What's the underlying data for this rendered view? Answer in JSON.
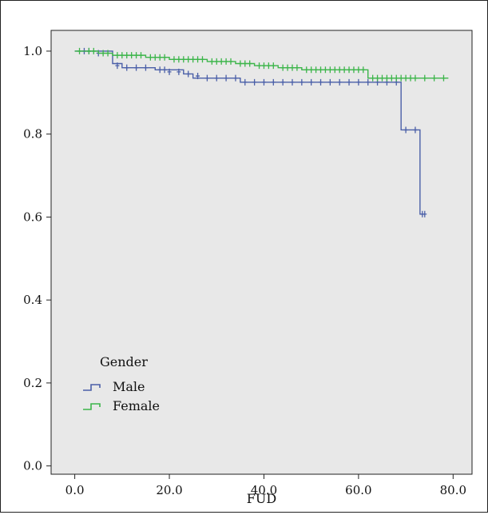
{
  "chart_data": {
    "type": "line",
    "subtype": "kaplan-meier-survival",
    "title": "",
    "xlabel": "FUD",
    "ylabel": "",
    "xlim": [
      -5,
      84
    ],
    "ylim": [
      -0.02,
      1.05
    ],
    "x_ticks": [
      "0.0",
      "20.0",
      "40.0",
      "60.0",
      "80.0"
    ],
    "x_tick_values": [
      0,
      20,
      40,
      60,
      80
    ],
    "y_ticks": [
      "0.0",
      "0.2",
      "0.4",
      "0.6",
      "0.8",
      "1.0"
    ],
    "y_tick_values": [
      0,
      0.2,
      0.4,
      0.6,
      0.8,
      1.0
    ],
    "grid": false,
    "legend": {
      "title": "Gender",
      "position": "bottom-left",
      "entries": [
        {
          "label": "Male",
          "color": "#4a5fa8"
        },
        {
          "label": "Female",
          "color": "#3cb54a"
        }
      ]
    },
    "colors": {
      "plot_background": "#e8e8e8",
      "Male": "#4a5fa8",
      "Female": "#3cb54a"
    },
    "series": [
      {
        "name": "Male",
        "color": "#4a5fa8",
        "steps": [
          [
            0,
            1.0
          ],
          [
            8,
            0.97
          ],
          [
            10,
            0.96
          ],
          [
            17,
            0.955
          ],
          [
            23,
            0.945
          ],
          [
            25,
            0.935
          ],
          [
            35,
            0.925
          ],
          [
            69,
            0.81
          ],
          [
            73,
            0.607
          ],
          [
            74,
            0.607
          ]
        ],
        "censored": [
          [
            2,
            1.0
          ],
          [
            3,
            1.0
          ],
          [
            5,
            0.995
          ],
          [
            9,
            0.965
          ],
          [
            11,
            0.96
          ],
          [
            13,
            0.96
          ],
          [
            15,
            0.96
          ],
          [
            18,
            0.955
          ],
          [
            19,
            0.955
          ],
          [
            20,
            0.95
          ],
          [
            22,
            0.95
          ],
          [
            24,
            0.945
          ],
          [
            26,
            0.94
          ],
          [
            28,
            0.935
          ],
          [
            30,
            0.935
          ],
          [
            32,
            0.935
          ],
          [
            34,
            0.935
          ],
          [
            36,
            0.925
          ],
          [
            38,
            0.925
          ],
          [
            40,
            0.925
          ],
          [
            42,
            0.925
          ],
          [
            44,
            0.925
          ],
          [
            46,
            0.925
          ],
          [
            48,
            0.925
          ],
          [
            50,
            0.925
          ],
          [
            52,
            0.925
          ],
          [
            54,
            0.925
          ],
          [
            56,
            0.925
          ],
          [
            58,
            0.925
          ],
          [
            60,
            0.925
          ],
          [
            62,
            0.925
          ],
          [
            64,
            0.925
          ],
          [
            66,
            0.925
          ],
          [
            68,
            0.925
          ],
          [
            70,
            0.81
          ],
          [
            72,
            0.81
          ],
          [
            73.5,
            0.607
          ],
          [
            74,
            0.607
          ]
        ]
      },
      {
        "name": "Female",
        "color": "#3cb54a",
        "steps": [
          [
            0,
            1.0
          ],
          [
            5,
            0.995
          ],
          [
            8,
            0.99
          ],
          [
            15,
            0.985
          ],
          [
            20,
            0.98
          ],
          [
            28,
            0.975
          ],
          [
            34,
            0.97
          ],
          [
            38,
            0.965
          ],
          [
            43,
            0.96
          ],
          [
            48,
            0.955
          ],
          [
            62,
            0.935
          ],
          [
            79,
            0.935
          ]
        ],
        "censored": [
          [
            1,
            1.0
          ],
          [
            3,
            1.0
          ],
          [
            4,
            1.0
          ],
          [
            6,
            0.995
          ],
          [
            7,
            0.995
          ],
          [
            9,
            0.99
          ],
          [
            10,
            0.99
          ],
          [
            11,
            0.99
          ],
          [
            12,
            0.99
          ],
          [
            13,
            0.99
          ],
          [
            14,
            0.99
          ],
          [
            16,
            0.985
          ],
          [
            17,
            0.985
          ],
          [
            18,
            0.985
          ],
          [
            19,
            0.985
          ],
          [
            21,
            0.98
          ],
          [
            22,
            0.98
          ],
          [
            23,
            0.98
          ],
          [
            24,
            0.98
          ],
          [
            25,
            0.98
          ],
          [
            26,
            0.98
          ],
          [
            27,
            0.98
          ],
          [
            29,
            0.975
          ],
          [
            30,
            0.975
          ],
          [
            31,
            0.975
          ],
          [
            32,
            0.975
          ],
          [
            33,
            0.975
          ],
          [
            35,
            0.97
          ],
          [
            36,
            0.97
          ],
          [
            37,
            0.97
          ],
          [
            39,
            0.965
          ],
          [
            40,
            0.965
          ],
          [
            41,
            0.965
          ],
          [
            42,
            0.965
          ],
          [
            44,
            0.96
          ],
          [
            45,
            0.96
          ],
          [
            46,
            0.96
          ],
          [
            47,
            0.96
          ],
          [
            49,
            0.955
          ],
          [
            50,
            0.955
          ],
          [
            51,
            0.955
          ],
          [
            52,
            0.955
          ],
          [
            53,
            0.955
          ],
          [
            54,
            0.955
          ],
          [
            55,
            0.955
          ],
          [
            56,
            0.955
          ],
          [
            57,
            0.955
          ],
          [
            58,
            0.955
          ],
          [
            59,
            0.955
          ],
          [
            60,
            0.955
          ],
          [
            61,
            0.955
          ],
          [
            63,
            0.935
          ],
          [
            64,
            0.935
          ],
          [
            65,
            0.935
          ],
          [
            66,
            0.935
          ],
          [
            67,
            0.935
          ],
          [
            68,
            0.935
          ],
          [
            69,
            0.935
          ],
          [
            70,
            0.935
          ],
          [
            71,
            0.935
          ],
          [
            72,
            0.935
          ],
          [
            74,
            0.935
          ],
          [
            76,
            0.935
          ],
          [
            78,
            0.935
          ]
        ]
      }
    ]
  }
}
